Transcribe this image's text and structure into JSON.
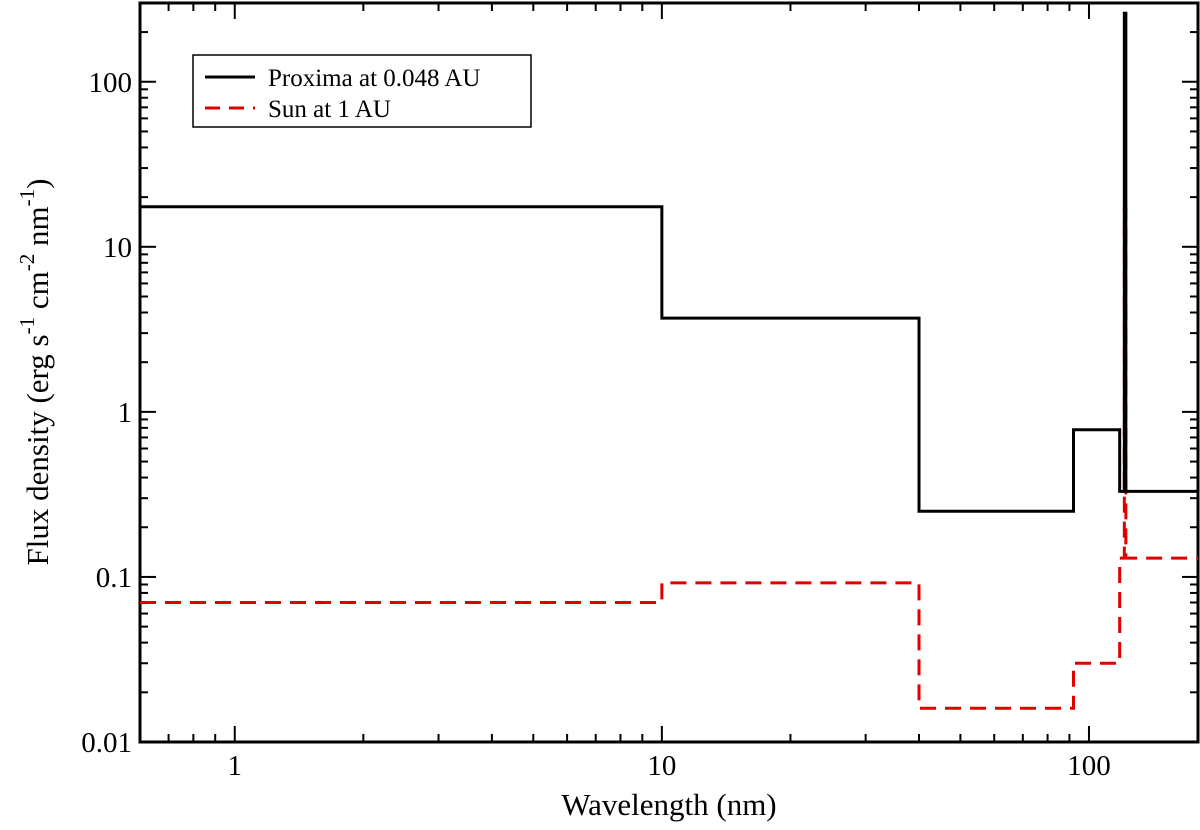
{
  "chart_data": {
    "type": "line",
    "title": "",
    "xlabel": "Wavelength (nm)",
    "ylabel": {
      "base": "Flux density (erg s",
      "exp1": "-1",
      "mid1": " cm",
      "exp2": "-2",
      "mid2": " nm",
      "exp3": "-1",
      "end": ")"
    },
    "xscale": "log",
    "yscale": "log",
    "xlim": [
      0.6,
      180
    ],
    "ylim": [
      0.01,
      300
    ],
    "xticks": [
      1,
      10,
      100
    ],
    "xtick_labels": [
      "1",
      "10",
      "100"
    ],
    "yticks": [
      0.01,
      0.1,
      1,
      10,
      100
    ],
    "ytick_labels": [
      "0.01",
      "0.1",
      "1",
      "10",
      "100"
    ],
    "grid": false,
    "legend_position": "top-left",
    "series": [
      {
        "name": "Proxima at 0.048 AU",
        "color": "#000000",
        "dash": "solid",
        "steps": [
          [
            0.6,
            10,
            17.5
          ],
          [
            10,
            40,
            3.7
          ],
          [
            40,
            92,
            0.25
          ],
          [
            92,
            118,
            0.78
          ],
          [
            118,
            121,
            0.33
          ],
          [
            121,
            122,
            260
          ],
          [
            122,
            180,
            0.33
          ]
        ]
      },
      {
        "name": "Sun at 1 AU",
        "color": "#e00000",
        "dash": "dashed",
        "steps": [
          [
            0.6,
            10,
            0.07
          ],
          [
            10,
            40,
            0.092
          ],
          [
            40,
            92,
            0.016
          ],
          [
            92,
            118,
            0.03
          ],
          [
            118,
            121,
            0.13
          ],
          [
            121,
            122,
            17
          ],
          [
            122,
            180,
            0.13
          ]
        ]
      }
    ]
  }
}
